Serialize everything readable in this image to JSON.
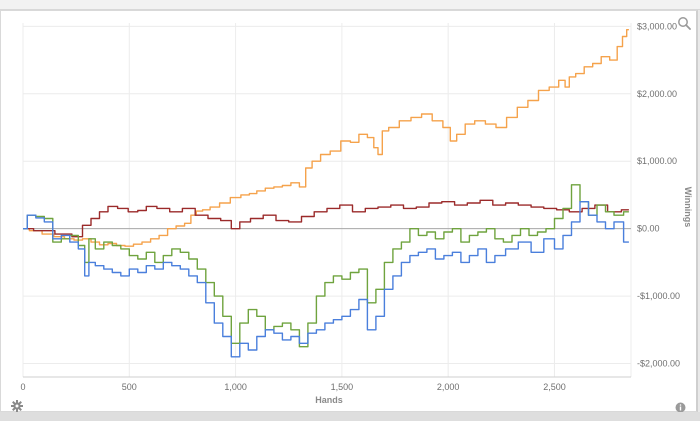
{
  "chart_data": {
    "type": "line",
    "xlabel": "Hands",
    "ylabel": "Winnings",
    "xlim": [
      0,
      2860
    ],
    "ylim": [
      -2200,
      3050
    ],
    "x_ticks": [
      {
        "value": 0,
        "label": "0"
      },
      {
        "value": 500,
        "label": "500"
      },
      {
        "value": 1000,
        "label": "1,000"
      },
      {
        "value": 1500,
        "label": "1,500"
      },
      {
        "value": 2000,
        "label": "2,000"
      },
      {
        "value": 2500,
        "label": "2,500"
      }
    ],
    "y_ticks": [
      {
        "value": 3000,
        "label": "$3,000.00"
      },
      {
        "value": 2000,
        "label": "$2,000.00"
      },
      {
        "value": 1000,
        "label": "$1,000.00"
      },
      {
        "value": 0,
        "label": "$0.00"
      },
      {
        "value": -1000,
        "label": "-$1,000.00"
      },
      {
        "value": -2000,
        "label": "-$2,000.00"
      }
    ],
    "grid": true,
    "series": [
      {
        "color": "#f5a24b",
        "x": [
          0,
          60,
          120,
          170,
          220,
          260,
          300,
          340,
          380,
          420,
          460,
          500,
          540,
          580,
          620,
          660,
          700,
          740,
          780,
          800,
          830,
          860,
          900,
          950,
          1000,
          1050,
          1080,
          1120,
          1160,
          1200,
          1240,
          1280,
          1320,
          1340,
          1380,
          1420,
          1470,
          1520,
          1560,
          1600,
          1640,
          1660,
          1680,
          1700,
          1740,
          1800,
          1850,
          1900,
          1950,
          2000,
          2020,
          2060,
          2100,
          2150,
          2200,
          2250,
          2300,
          2350,
          2400,
          2450,
          2500,
          2540,
          2560,
          2580,
          2620,
          2660,
          2700,
          2740,
          2780,
          2810,
          2830,
          2850
        ],
        "y": [
          0,
          -30,
          -80,
          -120,
          -150,
          -170,
          -150,
          -200,
          -240,
          -220,
          -250,
          -260,
          -230,
          -200,
          -150,
          -100,
          0,
          40,
          80,
          200,
          260,
          280,
          320,
          380,
          460,
          500,
          520,
          560,
          600,
          620,
          640,
          680,
          620,
          900,
          1000,
          1100,
          1150,
          1300,
          1280,
          1400,
          1350,
          1200,
          1100,
          1450,
          1500,
          1600,
          1650,
          1700,
          1600,
          1500,
          1300,
          1400,
          1550,
          1600,
          1550,
          1500,
          1650,
          1800,
          1900,
          2050,
          2100,
          2200,
          2100,
          2250,
          2300,
          2400,
          2450,
          2550,
          2500,
          2700,
          2850,
          2950
        ]
      },
      {
        "color": "#9b2a2a",
        "x": [
          0,
          100,
          200,
          260,
          300,
          340,
          380,
          420,
          470,
          520,
          560,
          600,
          660,
          720,
          780,
          840,
          900,
          960,
          1000,
          1040,
          1100,
          1160,
          1220,
          1280,
          1340,
          1400,
          1460,
          1520,
          1580,
          1640,
          1700,
          1760,
          1820,
          1880,
          1940,
          2000,
          2060,
          2120,
          2180,
          2240,
          2300,
          2360,
          2420,
          2480,
          2540,
          2600,
          2660,
          2720,
          2780,
          2850
        ],
        "y": [
          0,
          -30,
          -80,
          -120,
          50,
          150,
          250,
          330,
          300,
          250,
          270,
          330,
          300,
          250,
          300,
          200,
          150,
          120,
          0,
          100,
          150,
          200,
          120,
          100,
          180,
          250,
          300,
          350,
          250,
          300,
          320,
          350,
          300,
          320,
          380,
          400,
          350,
          380,
          420,
          350,
          380,
          350,
          320,
          300,
          280,
          250,
          300,
          350,
          250,
          280
        ]
      },
      {
        "color": "#6fa33e",
        "x": [
          0,
          40,
          80,
          120,
          160,
          200,
          240,
          280,
          300,
          320,
          360,
          400,
          440,
          480,
          520,
          560,
          600,
          640,
          680,
          720,
          760,
          800,
          840,
          880,
          920,
          960,
          1000,
          1040,
          1080,
          1120,
          1160,
          1200,
          1240,
          1280,
          1320,
          1360,
          1400,
          1440,
          1480,
          1520,
          1560,
          1600,
          1640,
          1680,
          1720,
          1760,
          1800,
          1840,
          1880,
          1920,
          1960,
          2000,
          2040,
          2080,
          2120,
          2160,
          2200,
          2240,
          2280,
          2320,
          2360,
          2400,
          2440,
          2480,
          2520,
          2560,
          2600,
          2640,
          2680,
          2720,
          2760,
          2800,
          2850
        ],
        "y": [
          0,
          200,
          180,
          150,
          -200,
          -150,
          -100,
          -250,
          -500,
          -150,
          -300,
          -200,
          -250,
          -300,
          -400,
          -450,
          -350,
          -500,
          -400,
          -300,
          -350,
          -450,
          -600,
          -800,
          -1000,
          -1300,
          -1700,
          -1400,
          -1200,
          -1300,
          -1500,
          -1450,
          -1400,
          -1500,
          -1750,
          -1400,
          -1000,
          -800,
          -700,
          -750,
          -650,
          -600,
          -1100,
          -900,
          -500,
          -300,
          -200,
          0,
          -100,
          -50,
          -150,
          -50,
          0,
          -200,
          -100,
          -50,
          0,
          -150,
          -200,
          -100,
          0,
          -100,
          -50,
          0,
          150,
          300,
          650,
          400,
          200,
          350,
          250,
          200,
          250
        ]
      },
      {
        "color": "#4a7fdc",
        "x": [
          0,
          40,
          80,
          120,
          160,
          200,
          240,
          280,
          300,
          320,
          360,
          400,
          440,
          480,
          520,
          560,
          600,
          640,
          680,
          720,
          760,
          800,
          840,
          880,
          920,
          960,
          1000,
          1040,
          1080,
          1120,
          1160,
          1200,
          1240,
          1280,
          1320,
          1360,
          1400,
          1440,
          1480,
          1520,
          1560,
          1600,
          1640,
          1680,
          1720,
          1760,
          1800,
          1840,
          1880,
          1920,
          1960,
          2000,
          2040,
          2080,
          2120,
          2160,
          2200,
          2240,
          2300,
          2360,
          2420,
          2480,
          2520,
          2560,
          2600,
          2640,
          2680,
          2720,
          2760,
          2800,
          2850
        ],
        "y": [
          0,
          200,
          160,
          100,
          -150,
          -100,
          -200,
          -300,
          -700,
          -500,
          -550,
          -600,
          -650,
          -700,
          -600,
          -650,
          -550,
          -600,
          -500,
          -550,
          -600,
          -700,
          -800,
          -1100,
          -1400,
          -1600,
          -1900,
          -1700,
          -1800,
          -1600,
          -1500,
          -1550,
          -1650,
          -1600,
          -1700,
          -1550,
          -1500,
          -1400,
          -1350,
          -1300,
          -1200,
          -1050,
          -1500,
          -1300,
          -900,
          -700,
          -500,
          -400,
          -350,
          -300,
          -450,
          -400,
          -350,
          -500,
          -400,
          -300,
          -500,
          -400,
          -300,
          -200,
          -350,
          -150,
          -300,
          -100,
          100,
          400,
          200,
          100,
          0,
          100,
          -200
        ]
      }
    ]
  },
  "toolbar": {
    "zoom_icon": "magnify-icon",
    "settings_icon": "gear-icon",
    "info_icon": "info-icon"
  }
}
